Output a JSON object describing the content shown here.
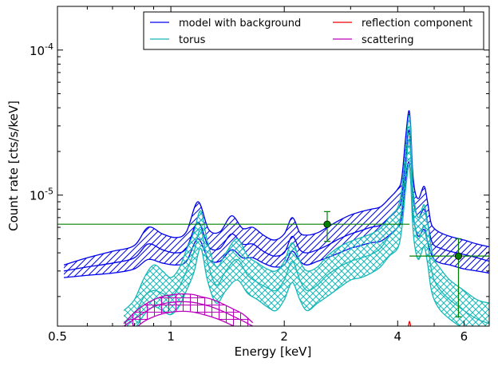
{
  "chart_data": {
    "type": "line",
    "xlabel": "Energy [keV]",
    "ylabel": "Count rate [cts/s/keV]",
    "xscale": "log",
    "yscale": "log",
    "xlim": [
      0.5,
      7.0
    ],
    "ylim": [
      1.25e-06,
      0.0002
    ],
    "x_ticks": [
      {
        "value": 0.5,
        "label": "0.5"
      },
      {
        "value": 1,
        "label": "1"
      },
      {
        "value": 2,
        "label": "2"
      },
      {
        "value": 4,
        "label": "4"
      },
      {
        "value": 6,
        "label": "6"
      }
    ],
    "y_ticks": [
      {
        "value": 1e-05,
        "base": "10",
        "exp": "-5"
      },
      {
        "value": 0.0001,
        "base": "10",
        "exp": "-4"
      }
    ],
    "legend": {
      "placement": "top-right",
      "entries": [
        {
          "label": "model with background",
          "color": "#0000ee"
        },
        {
          "label": "reflection component",
          "color": "#ee0000"
        },
        {
          "label": "torus",
          "color": "#17b8b8"
        },
        {
          "label": "scattering",
          "color": "#bb00bb"
        }
      ]
    },
    "bands": [
      {
        "name": "model with background",
        "color": "#0000ee",
        "hatch": "diagonal",
        "x": [
          0.52,
          0.6,
          0.7,
          0.8,
          0.87,
          0.95,
          1.03,
          1.1,
          1.18,
          1.26,
          1.35,
          1.45,
          1.55,
          1.65,
          1.76,
          1.88,
          2.0,
          2.1,
          2.2,
          2.3,
          2.45,
          2.6,
          2.8,
          3.0,
          3.2,
          3.4,
          3.6,
          3.8,
          4.0,
          4.1,
          4.2,
          4.28,
          4.33,
          4.38,
          4.45,
          4.55,
          4.7,
          4.8,
          4.9,
          5.0,
          5.2,
          5.5,
          6.0,
          6.5,
          7.0
        ],
        "center": [
          3e-06,
          3.2e-06,
          3.4e-06,
          3.7e-06,
          4.6e-06,
          4.2e-06,
          4e-06,
          4.3e-06,
          6.5e-06,
          4.4e-06,
          4.3e-06,
          5.4e-06,
          4.6e-06,
          4.6e-06,
          4.1e-06,
          3.8e-06,
          4e-06,
          5.2e-06,
          4.2e-06,
          4e-06,
          4.2e-06,
          4.5e-06,
          5e-06,
          5.4e-06,
          5.7e-06,
          6e-06,
          6.2e-06,
          7e-06,
          8e-06,
          9.5e-06,
          1.8e-05,
          2.8e-05,
          2.2e-05,
          1.1e-05,
          8e-06,
          7e-06,
          8e-06,
          6.5e-06,
          5e-06,
          4.5e-06,
          4.3e-06,
          4.1e-06,
          3.9e-06,
          3.7e-06,
          3.5e-06
        ],
        "lower": [
          2.7e-06,
          2.8e-06,
          2.9e-06,
          3.1e-06,
          3.6e-06,
          3.4e-06,
          3.3e-06,
          3.5e-06,
          5e-06,
          3.6e-06,
          3.5e-06,
          4.2e-06,
          3.7e-06,
          3.7e-06,
          3.4e-06,
          3.2e-06,
          3.3e-06,
          4.1e-06,
          3.5e-06,
          3.3e-06,
          3.5e-06,
          3.7e-06,
          4e-06,
          4.3e-06,
          4.5e-06,
          4.7e-06,
          4.8e-06,
          5.3e-06,
          6e-06,
          7e-06,
          1.3e-05,
          1.7e-05,
          1.3e-05,
          8e-06,
          6e-06,
          5.2e-06,
          5.8e-06,
          4.8e-06,
          4e-06,
          3.6e-06,
          3.4e-06,
          3.3e-06,
          3.1e-06,
          3e-06,
          2.9e-06
        ],
        "upper": [
          3.3e-06,
          3.7e-06,
          4.1e-06,
          4.5e-06,
          6e-06,
          5.4e-06,
          5.1e-06,
          5.6e-06,
          9e-06,
          5.8e-06,
          5.6e-06,
          7.2e-06,
          5.9e-06,
          6e-06,
          5.3e-06,
          4.9e-06,
          5.4e-06,
          7e-06,
          5.5e-06,
          5.3e-06,
          5.5e-06,
          6e-06,
          6.7e-06,
          7.3e-06,
          7.7e-06,
          8e-06,
          8.3e-06,
          9.5e-06,
          1.1e-05,
          1.3e-05,
          2.5e-05,
          3.8e-05,
          3e-05,
          1.5e-05,
          1.05e-05,
          9.5e-06,
          1.15e-05,
          9e-06,
          6.5e-06,
          5.9e-06,
          5.5e-06,
          5.2e-06,
          4.9e-06,
          4.6e-06,
          4.4e-06
        ]
      },
      {
        "name": "torus",
        "color": "#17b8b8",
        "hatch": "crosshatch",
        "x": [
          0.75,
          0.8,
          0.85,
          0.9,
          0.95,
          1.0,
          1.05,
          1.1,
          1.15,
          1.2,
          1.25,
          1.32,
          1.4,
          1.5,
          1.6,
          1.7,
          1.8,
          1.9,
          2.0,
          2.1,
          2.2,
          2.3,
          2.45,
          2.6,
          2.8,
          3.0,
          3.2,
          3.4,
          3.6,
          3.8,
          4.0,
          4.1,
          4.2,
          4.28,
          4.33,
          4.38,
          4.45,
          4.55,
          4.7,
          4.8,
          4.9,
          5.0,
          5.2,
          5.5,
          6.0,
          6.5,
          7.0
        ],
        "center": [
          1.3e-06,
          1.5e-06,
          2e-06,
          2.2e-06,
          2.1e-06,
          2e-06,
          2.3e-06,
          3e-06,
          4e-06,
          5.8e-06,
          3.5e-06,
          2.4e-06,
          3e-06,
          3.6e-06,
          2.8e-06,
          2.5e-06,
          2.3e-06,
          2.2e-06,
          2.6e-06,
          3.5e-06,
          2.6e-06,
          2.2e-06,
          2.4e-06,
          2.8e-06,
          3.2e-06,
          3.5e-06,
          3.7e-06,
          3.9e-06,
          4.3e-06,
          5.2e-06,
          6e-06,
          8e-06,
          1.5e-05,
          2.4e-05,
          1.9e-05,
          9e-06,
          6e-06,
          5e-06,
          6.2e-06,
          4.8e-06,
          3.2e-06,
          2.6e-06,
          2.2e-06,
          1.9e-06,
          1.6e-06,
          1.4e-06,
          1.3e-06
        ],
        "lower": [
          1.1e-06,
          1.2e-06,
          1.5e-06,
          1.7e-06,
          1.6e-06,
          1.5e-06,
          1.7e-06,
          2.2e-06,
          2.9e-06,
          4.3e-06,
          2.6e-06,
          1.8e-06,
          2.2e-06,
          2.6e-06,
          2.1e-06,
          1.9e-06,
          1.7e-06,
          1.6e-06,
          1.9e-06,
          2.5e-06,
          1.9e-06,
          1.6e-06,
          1.8e-06,
          2e-06,
          2.3e-06,
          2.6e-06,
          2.7e-06,
          2.9e-06,
          3.2e-06,
          3.8e-06,
          4.3e-06,
          5.8e-06,
          1.1e-05,
          1.6e-05,
          1.3e-05,
          6.5e-06,
          4.3e-06,
          3.6e-06,
          4.4e-06,
          3.4e-06,
          2.3e-06,
          1.9e-06,
          1.6e-06,
          1.4e-06,
          1.2e-06,
          1.1e-06,
          1e-06
        ],
        "upper": [
          1.6e-06,
          1.9e-06,
          2.7e-06,
          3.3e-06,
          3e-06,
          2.7e-06,
          3.1e-06,
          4.2e-06,
          5.5e-06,
          7.8e-06,
          4.8e-06,
          3.2e-06,
          4e-06,
          5e-06,
          3.8e-06,
          3.4e-06,
          3.1e-06,
          3e-06,
          3.5e-06,
          4.7e-06,
          3.5e-06,
          3e-06,
          3.2e-06,
          3.8e-06,
          4.4e-06,
          4.8e-06,
          5.1e-06,
          5.4e-06,
          5.9e-06,
          7e-06,
          8.2e-06,
          1.1e-05,
          2e-05,
          3.5e-05,
          2.8e-05,
          1.25e-05,
          8.3e-06,
          7e-06,
          8.6e-06,
          6.6e-06,
          4.5e-06,
          3.6e-06,
          3.1e-06,
          2.6e-06,
          2.2e-06,
          1.9e-06,
          1.8e-06
        ]
      },
      {
        "name": "scattering",
        "color": "#bb00bb",
        "hatch": "grid",
        "x": [
          0.75,
          0.8,
          0.85,
          0.9,
          0.95,
          1.0,
          1.05,
          1.1,
          1.15,
          1.2,
          1.28,
          1.36,
          1.45,
          1.55,
          1.65
        ],
        "center": [
          1.25e-06,
          1.4e-06,
          1.55e-06,
          1.7e-06,
          1.78e-06,
          1.82e-06,
          1.84e-06,
          1.84e-06,
          1.82e-06,
          1.78e-06,
          1.7e-06,
          1.6e-06,
          1.48e-06,
          1.36e-06,
          1.25e-06
        ],
        "lower": [
          1.1e-06,
          1.2e-06,
          1.35e-06,
          1.45e-06,
          1.52e-06,
          1.56e-06,
          1.58e-06,
          1.58e-06,
          1.56e-06,
          1.52e-06,
          1.45e-06,
          1.37e-06,
          1.27e-06,
          1.17e-06,
          1.1e-06
        ],
        "upper": [
          1.3e-06,
          1.55e-06,
          1.75e-06,
          1.9e-06,
          2e-06,
          2.05e-06,
          2.08e-06,
          2.08e-06,
          2.06e-06,
          2e-06,
          1.92e-06,
          1.8e-06,
          1.66e-06,
          1.52e-06,
          1.32e-06
        ]
      }
    ],
    "reflection_component": {
      "color": "#ee0000",
      "x": [
        4.27,
        4.3,
        4.33
      ],
      "y": [
        1.25e-06,
        1.35e-06,
        1.25e-06
      ]
    },
    "data_points": [
      {
        "x": 2.6,
        "y": 6.3e-06,
        "xerr": [
          0.5,
          4.3
        ],
        "yerr": [
          4.8e-06,
          7.7e-06
        ]
      },
      {
        "x": 5.8,
        "y": 3.8e-06,
        "xerr": [
          4.3,
          7.0
        ],
        "yerr": [
          1.45e-06,
          5e-06
        ]
      }
    ],
    "data_point_color": "#008000"
  }
}
